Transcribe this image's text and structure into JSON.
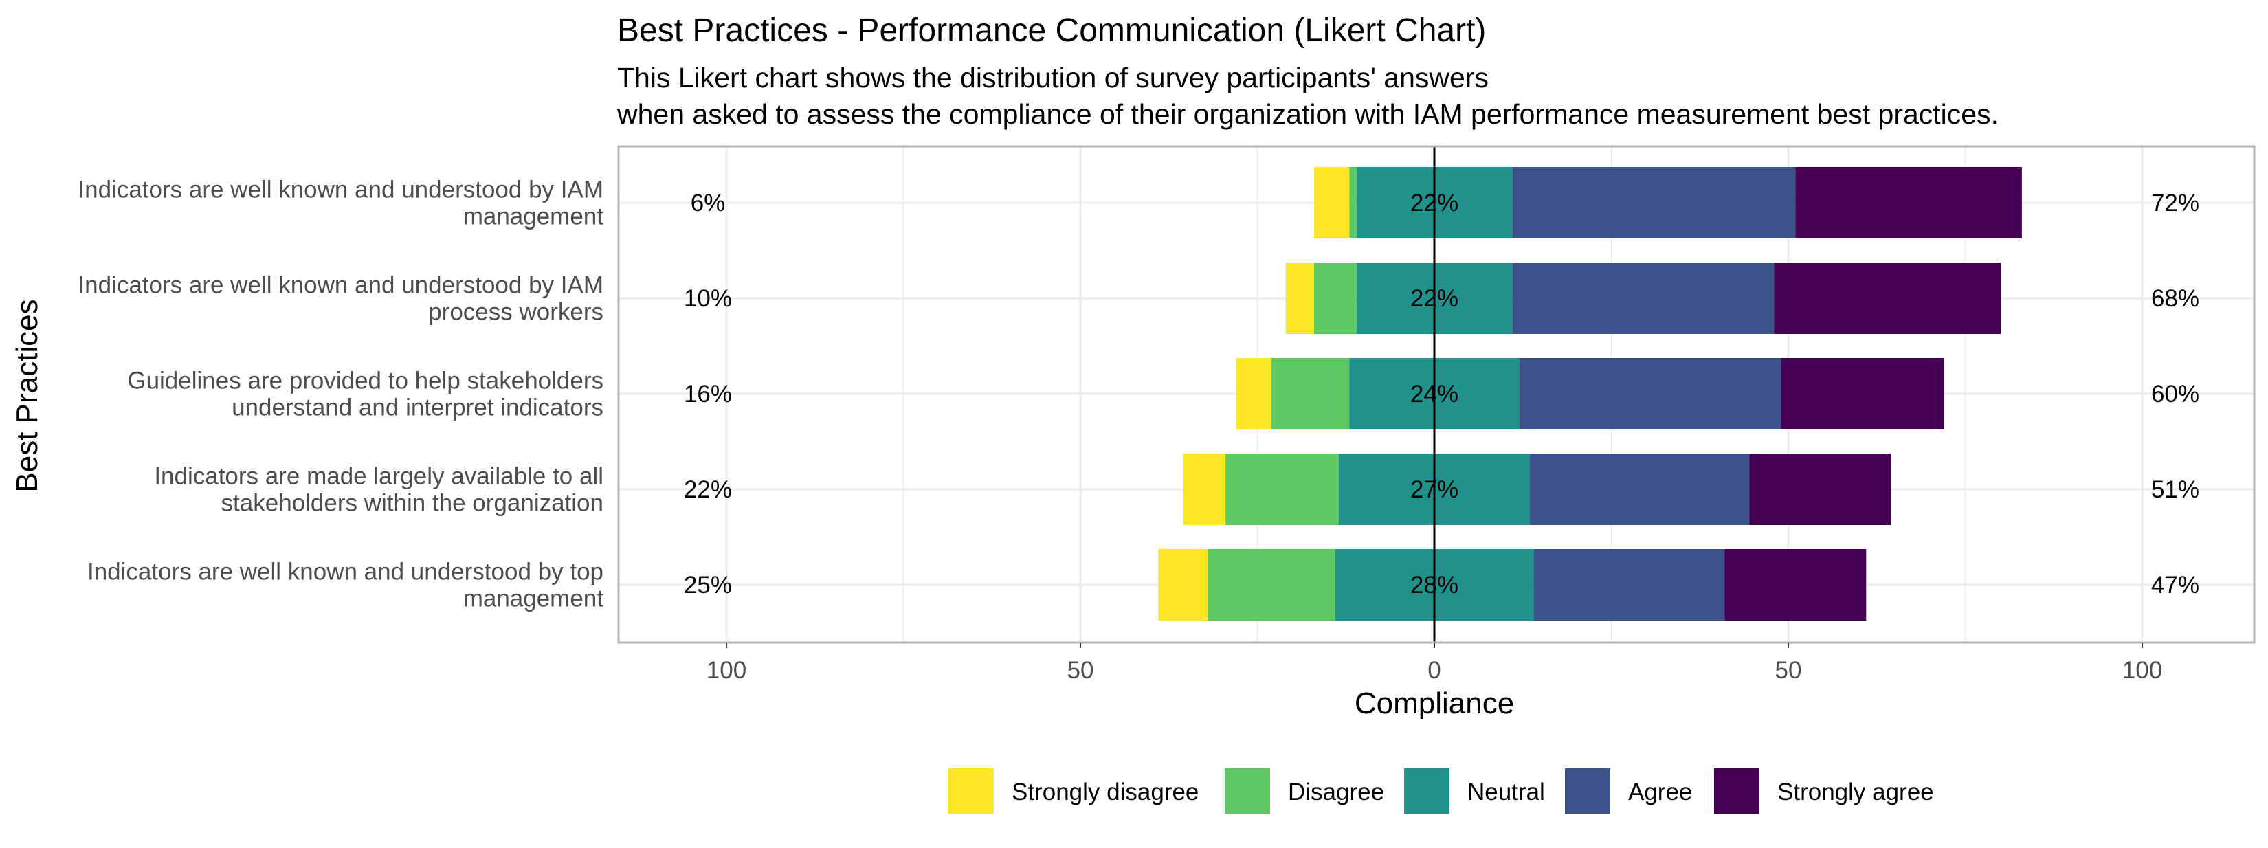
{
  "chart_data": {
    "type": "bar",
    "subtype": "diverging-stacked-likert",
    "title": "Best Practices - Performance Communication (Likert Chart)",
    "subtitle_lines": [
      "This Likert chart shows the distribution of survey participants' answers",
      "when asked to assess the compliance of their organization with IAM performance measurement best practices."
    ],
    "xlabel": "Compliance",
    "ylabel": "Best Practices",
    "xlim": [
      -100,
      100
    ],
    "x_ticks": [
      -100,
      -50,
      0,
      50,
      100
    ],
    "x_tick_labels": [
      "100",
      "50",
      "0",
      "50",
      "100"
    ],
    "grid": true,
    "legend_position": "bottom",
    "levels": [
      "Strongly disagree",
      "Disagree",
      "Neutral",
      "Agree",
      "Strongly agree"
    ],
    "colors": {
      "Strongly disagree": "#fde725",
      "Disagree": "#5ec962",
      "Neutral": "#21918c",
      "Agree": "#3b528b",
      "Strongly agree": "#440154"
    },
    "categories": [
      {
        "label_lines": [
          "Indicators are well known and understood by IAM",
          "management"
        ],
        "values": {
          "Strongly disagree": 5,
          "Disagree": 1,
          "Neutral": 22,
          "Agree": 40,
          "Strongly agree": 32
        },
        "low_label": "6%",
        "neutral_label": "22%",
        "high_label": "72%"
      },
      {
        "label_lines": [
          "Indicators are well known and understood by IAM",
          "process workers"
        ],
        "values": {
          "Strongly disagree": 4,
          "Disagree": 6,
          "Neutral": 22,
          "Agree": 37,
          "Strongly agree": 32
        },
        "low_label": "10%",
        "neutral_label": "22%",
        "high_label": "68%"
      },
      {
        "label_lines": [
          "Guidelines are provided to help stakeholders",
          "understand and interpret indicators"
        ],
        "values": {
          "Strongly disagree": 5,
          "Disagree": 11,
          "Neutral": 24,
          "Agree": 37,
          "Strongly agree": 23
        },
        "low_label": "16%",
        "neutral_label": "24%",
        "high_label": "60%"
      },
      {
        "label_lines": [
          "Indicators are made largely available to all",
          "stakeholders within the organization"
        ],
        "values": {
          "Strongly disagree": 6,
          "Disagree": 16,
          "Neutral": 27,
          "Agree": 31,
          "Strongly agree": 20
        },
        "low_label": "22%",
        "neutral_label": "27%",
        "high_label": "51%"
      },
      {
        "label_lines": [
          "Indicators are well known and understood by top",
          "management"
        ],
        "values": {
          "Strongly disagree": 7,
          "Disagree": 18,
          "Neutral": 28,
          "Agree": 27,
          "Strongly agree": 20
        },
        "low_label": "25%",
        "neutral_label": "28%",
        "high_label": "47%"
      }
    ]
  }
}
